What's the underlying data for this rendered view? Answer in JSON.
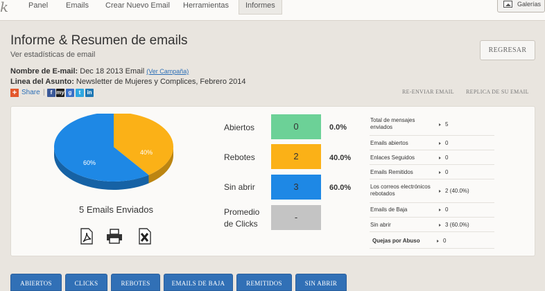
{
  "nav": {
    "logo_text": "k",
    "items": [
      "Panel",
      "Emails",
      "Crear Nuevo Email",
      "Herramientas",
      "Informes"
    ],
    "active": "Informes",
    "galerias_label": "Galerías"
  },
  "header": {
    "title": "Informe & Resumen de emails",
    "subtitle": "Ver estadísticas de email",
    "email_name_label": "Nombre de E-mail:",
    "email_name_value": " Dec 18 2013 Email ",
    "view_campaign_link": "(Ver Campaña)",
    "subject_label": "Linea del Asunto:",
    "subject_value": " Newsletter de Mujeres y Complices, Febrero 2014",
    "share_label": "Share",
    "share_separator": "|",
    "regresar_label": "REGRESAR",
    "reenviar_label": "RE-ENVIAR EMAIL",
    "replica_label": "REPLICA DE SU EMAIL"
  },
  "share_icons": [
    {
      "name": "facebook-icon",
      "glyph": "f",
      "color": "#3b5998"
    },
    {
      "name": "myspace-icon",
      "glyph": "my",
      "color": "#1d1d1d"
    },
    {
      "name": "google-icon",
      "glyph": "g",
      "color": "#3a6fc6"
    },
    {
      "name": "twitter-icon",
      "glyph": "t",
      "color": "#2fa7e0"
    },
    {
      "name": "linkedin-icon",
      "glyph": "in",
      "color": "#1f78b4"
    }
  ],
  "chart_data": {
    "type": "pie",
    "slices": [
      {
        "label": "60%",
        "value": 60,
        "color": "#1e88e5"
      },
      {
        "label": "40%",
        "value": 40,
        "color": "#fbb117"
      }
    ]
  },
  "summary": {
    "emails_sent": "5 Emails Enviados"
  },
  "stats": [
    {
      "label": "Abiertos",
      "value": "0",
      "pct": "0.0%",
      "color": "#6cd197"
    },
    {
      "label": "Rebotes",
      "value": "2",
      "pct": "40.0%",
      "color": "#fbb117"
    },
    {
      "label": "Sin abrir",
      "value": "3",
      "pct": "60.0%",
      "color": "#1e88e5"
    },
    {
      "label": "Promedio de Clicks",
      "value": "-",
      "pct": "",
      "color": "#c4c4c4"
    }
  ],
  "side_stats": [
    {
      "label": "Total de mensajes enviados",
      "value": "5"
    },
    {
      "label": "Emails abiertos",
      "value": "0"
    },
    {
      "label": "Enlaces Seguidos",
      "value": "0"
    },
    {
      "label": "Emails Remitidos",
      "value": "0"
    },
    {
      "label": "Los correos electrónicos rebotados",
      "value": "2 (40.0%)"
    },
    {
      "label": "Emails de Baja",
      "value": "0"
    },
    {
      "label": "Sin abrir",
      "value": "3 (60.0%)"
    },
    {
      "label": "Quejas por Abuso",
      "value": "0"
    }
  ],
  "bottom_tabs": [
    "ABIERTOS",
    "CLICKS",
    "REBOTES",
    "EMAILS DE BAJA",
    "REMITIDOS",
    "SIN ABRIR"
  ]
}
